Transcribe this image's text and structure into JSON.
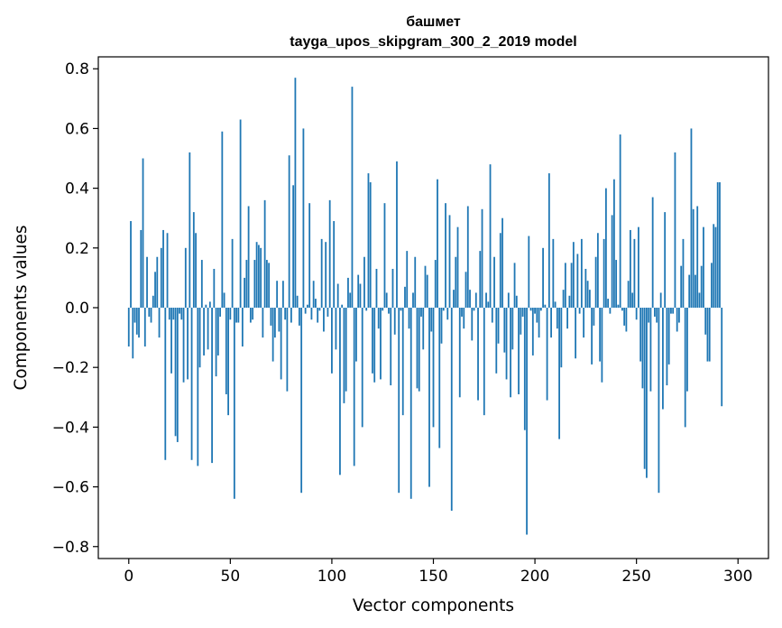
{
  "chart_data": {
    "type": "bar",
    "title": "башмет",
    "subtitle": "tayga_upos_skipgram_300_2_2019 model",
    "xlabel": "Vector components",
    "ylabel": "Components values",
    "xlim": [
      -15,
      315
    ],
    "ylim": [
      -0.84,
      0.84
    ],
    "xticks": [
      0,
      50,
      100,
      150,
      200,
      250,
      300
    ],
    "yticks": [
      -0.8,
      -0.6,
      -0.4,
      -0.2,
      0.0,
      0.2,
      0.4,
      0.6,
      0.8
    ],
    "ytick_labels": [
      "−0.8",
      "−0.6",
      "−0.4",
      "−0.2",
      "0.0",
      "0.2",
      "0.4",
      "0.6",
      "0.8"
    ],
    "bar_color": "#1f77b4",
    "values": [
      -0.13,
      0.29,
      -0.17,
      -0.05,
      -0.09,
      -0.1,
      0.26,
      0.5,
      -0.13,
      0.17,
      -0.03,
      -0.05,
      0.04,
      0.12,
      0.17,
      -0.1,
      0.2,
      0.26,
      -0.51,
      0.25,
      -0.04,
      -0.22,
      -0.04,
      -0.43,
      -0.45,
      -0.02,
      -0.04,
      -0.25,
      0.2,
      -0.24,
      0.52,
      -0.51,
      0.32,
      0.25,
      -0.53,
      -0.2,
      0.16,
      -0.16,
      0.01,
      -0.14,
      0.02,
      -0.52,
      0.13,
      -0.23,
      -0.16,
      -0.03,
      0.59,
      0.05,
      -0.29,
      -0.36,
      -0.04,
      0.23,
      -0.64,
      -0.05,
      -0.05,
      0.63,
      -0.13,
      0.1,
      0.16,
      0.34,
      -0.05,
      -0.04,
      0.16,
      0.22,
      0.21,
      0.2,
      -0.1,
      0.36,
      0.16,
      0.15,
      -0.06,
      -0.18,
      -0.1,
      0.09,
      -0.08,
      -0.24,
      0.09,
      -0.04,
      -0.28,
      0.51,
      -0.05,
      0.41,
      0.77,
      0.04,
      -0.06,
      -0.62,
      0.6,
      -0.02,
      0.01,
      0.35,
      -0.04,
      0.09,
      0.03,
      -0.05,
      -0.01,
      0.23,
      -0.08,
      0.22,
      -0.03,
      0.36,
      -0.22,
      0.29,
      -0.14,
      0.08,
      -0.56,
      0.01,
      -0.32,
      -0.28,
      0.1,
      0.05,
      0.74,
      -0.53,
      -0.18,
      0.11,
      0.08,
      -0.4,
      0.17,
      -0.01,
      0.45,
      0.42,
      -0.22,
      -0.25,
      0.13,
      -0.07,
      -0.24,
      -0.01,
      0.35,
      0.05,
      -0.02,
      -0.26,
      0.13,
      -0.09,
      0.49,
      -0.62,
      -0.01,
      -0.36,
      0.07,
      0.19,
      -0.07,
      -0.64,
      0.05,
      0.17,
      -0.27,
      -0.28,
      -0.03,
      -0.14,
      0.14,
      0.11,
      -0.6,
      -0.08,
      -0.4,
      0.16,
      0.43,
      -0.47,
      -0.12,
      -0.01,
      0.35,
      -0.04,
      0.31,
      -0.68,
      0.06,
      0.17,
      0.27,
      -0.3,
      -0.03,
      -0.07,
      0.12,
      0.34,
      0.06,
      -0.11,
      -0.01,
      0.05,
      -0.31,
      0.19,
      0.33,
      -0.36,
      0.05,
      0.02,
      0.48,
      -0.05,
      0.17,
      -0.22,
      -0.12,
      0.25,
      0.3,
      -0.15,
      -0.24,
      0.05,
      -0.3,
      -0.14,
      0.15,
      0.04,
      -0.29,
      -0.09,
      -0.03,
      -0.41,
      -0.76,
      0.24,
      -0.01,
      -0.16,
      -0.02,
      -0.05,
      -0.1,
      -0.01,
      0.2,
      0.01,
      -0.31,
      0.45,
      -0.1,
      0.23,
      0.02,
      -0.07,
      -0.44,
      -0.2,
      0.06,
      0.15,
      -0.07,
      0.04,
      0.15,
      0.22,
      -0.17,
      0.18,
      -0.02,
      0.23,
      -0.1,
      0.13,
      0.09,
      0.06,
      -0.19,
      -0.06,
      0.17,
      0.25,
      -0.18,
      -0.25,
      0.23,
      0.4,
      0.03,
      -0.02,
      0.31,
      0.43,
      0.16,
      0.01,
      0.58,
      -0.01,
      -0.06,
      -0.08,
      0.09,
      0.26,
      0.05,
      0.23,
      -0.04,
      0.27,
      -0.18,
      -0.27,
      -0.54,
      -0.57,
      -0.05,
      -0.28,
      0.37,
      -0.03,
      -0.05,
      -0.62,
      0.05,
      -0.34,
      0.32,
      -0.26,
      -0.19,
      -0.02,
      -0.02,
      0.52,
      -0.08,
      -0.05,
      0.14,
      0.23,
      -0.4,
      -0.28,
      0.11,
      0.6,
      0.33,
      0.11,
      0.34,
      0.05,
      0.14,
      0.27,
      -0.09,
      -0.18,
      -0.18,
      0.15,
      0.28,
      0.27,
      0.42,
      0.42,
      -0.33
    ]
  }
}
